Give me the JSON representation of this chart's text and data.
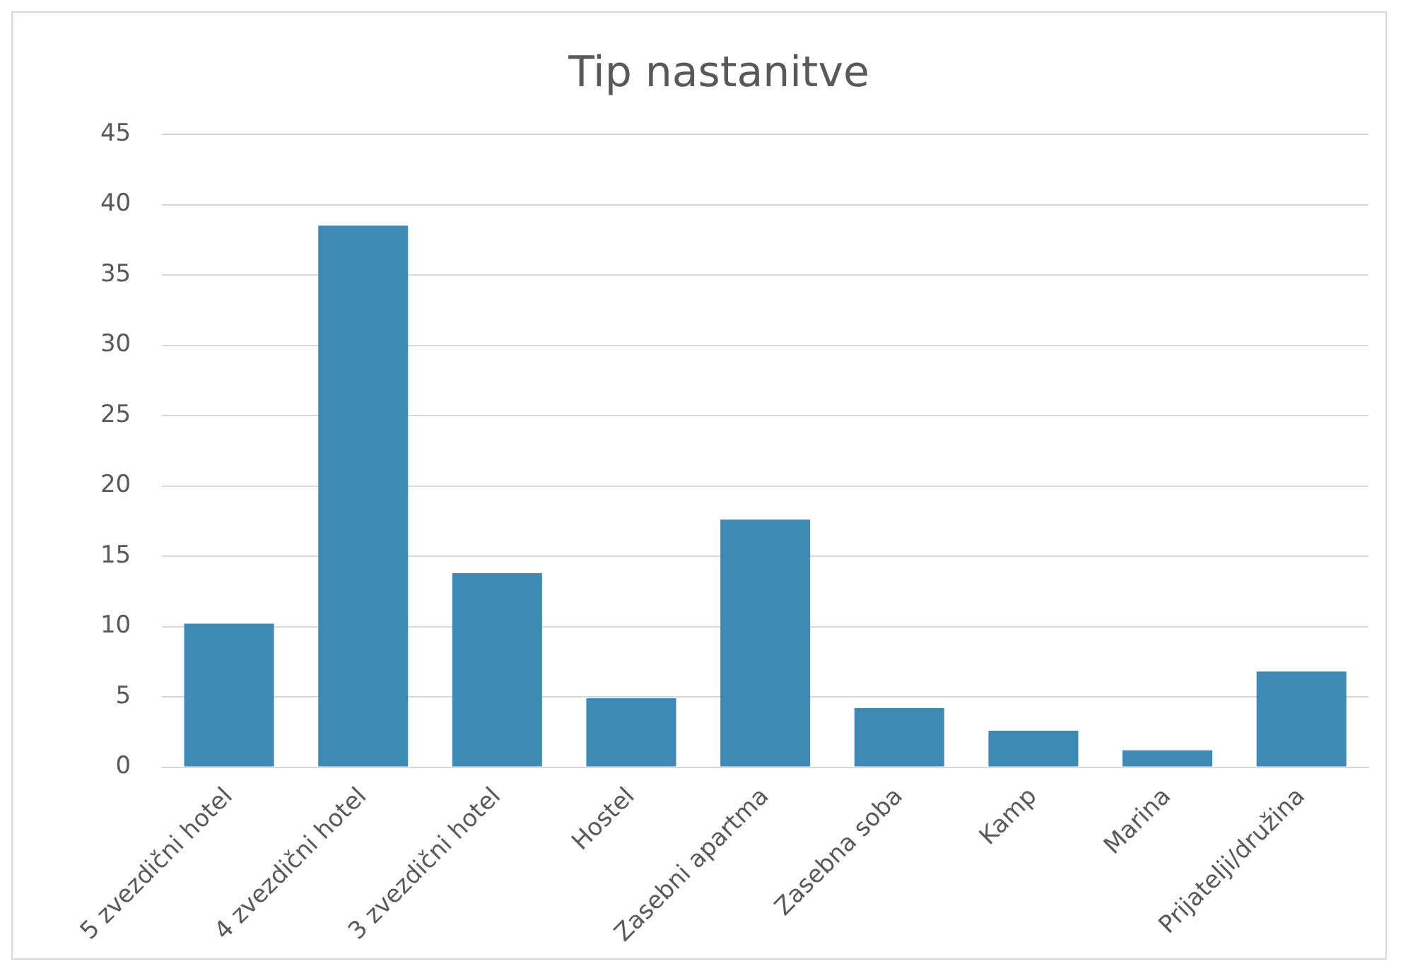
{
  "chart_data": {
    "type": "bar",
    "title": "Tip nastanitve",
    "categories": [
      "5 zvezdični hotel",
      "4 zvezdični hotel",
      "3 zvezdični hotel",
      "Hostel",
      "Zasebni apartma",
      "Zasebna soba",
      "Kamp",
      "Marina",
      "Prijatelji/družina"
    ],
    "values": [
      10.2,
      38.5,
      13.8,
      4.9,
      17.6,
      4.2,
      2.6,
      1.2,
      6.8
    ],
    "color": "#3f8ab4",
    "ylim": [
      0,
      45
    ],
    "yticks": [
      0,
      5,
      10,
      15,
      20,
      25,
      30,
      35,
      40,
      45
    ],
    "grid": "y"
  }
}
